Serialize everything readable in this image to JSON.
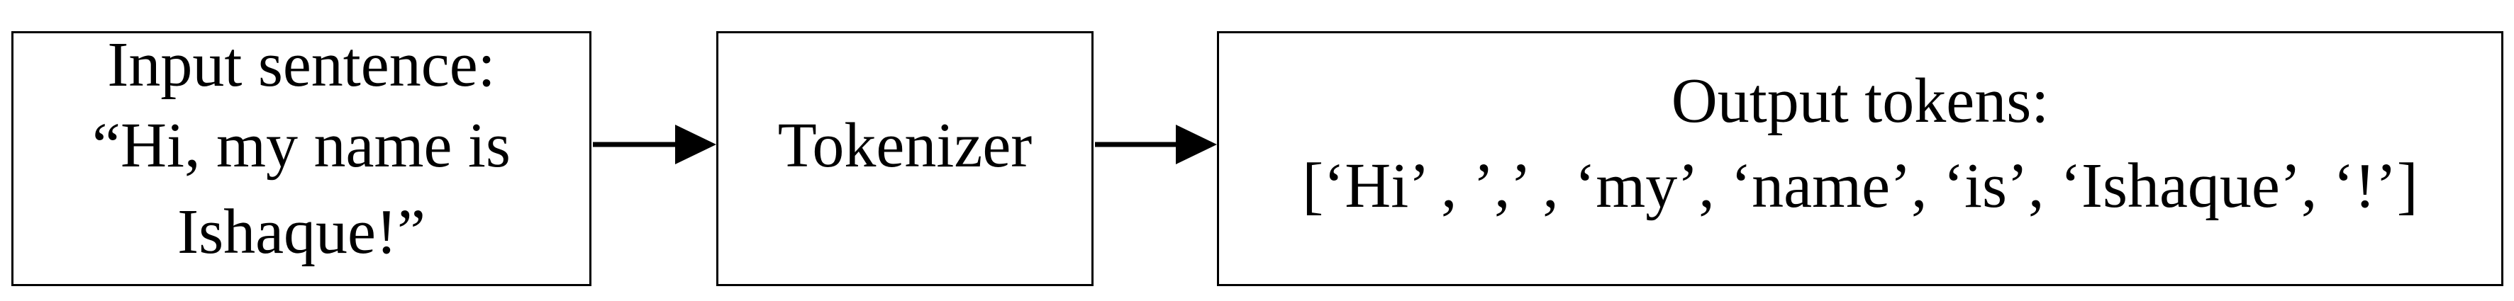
{
  "input_box": {
    "line1": "Input sentence:",
    "line2": "“Hi, my name is",
    "line3": "Ishaque!”"
  },
  "tokenizer_box": {
    "label": "Tokenizer"
  },
  "output_box": {
    "line1": "Output tokens:",
    "line2": "[‘Hi’ , ’,’ , ‘my’, ‘name’, ‘is’, ‘Ishaque’, ‘!’]"
  }
}
